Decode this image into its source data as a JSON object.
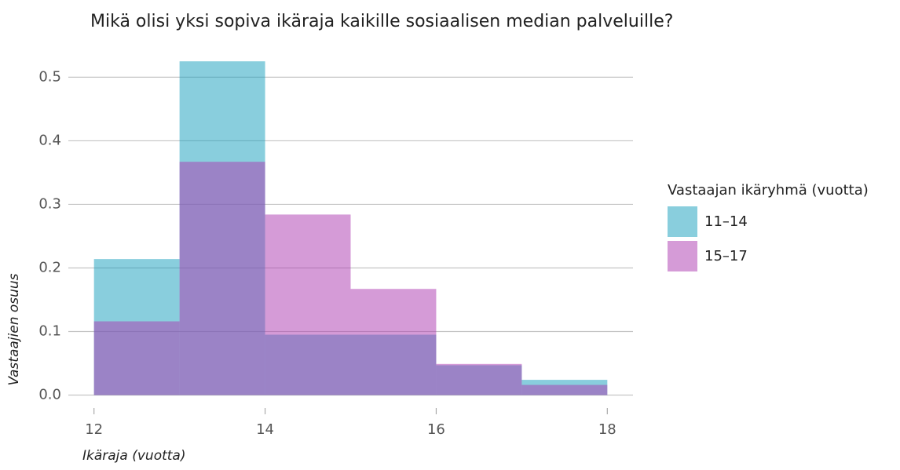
{
  "chart_data": {
    "type": "histogram",
    "title": "Mikä olisi yksi sopiva ikäraja kaikille sosiaalisen median palveluille?",
    "xlabel": "Ikäraja (vuotta)",
    "ylabel": "Vastaajien osuus",
    "legend_title": "Vastaajan ikäryhmä (vuotta)",
    "legend": "right",
    "bins": [
      12,
      13,
      14,
      15,
      16,
      17,
      18
    ],
    "series": [
      {
        "name": "11–14",
        "color": "#179fbd",
        "values": [
          0.214,
          0.525,
          0.095,
          0.095,
          0.047,
          0.024
        ]
      },
      {
        "name": "15–17",
        "color": "#ad3ab1",
        "values": [
          0.116,
          0.367,
          0.284,
          0.167,
          0.049,
          0.016
        ]
      }
    ],
    "xlim": [
      11.7,
      18.3
    ],
    "xticks": [
      12,
      14,
      16,
      18
    ],
    "ylim": [
      -0.008,
      0.54
    ],
    "yticks": [
      {
        "value": 0,
        "label": "0.0"
      },
      0.1,
      0.2,
      0.3,
      0.4,
      0.5
    ],
    "grid": true
  }
}
